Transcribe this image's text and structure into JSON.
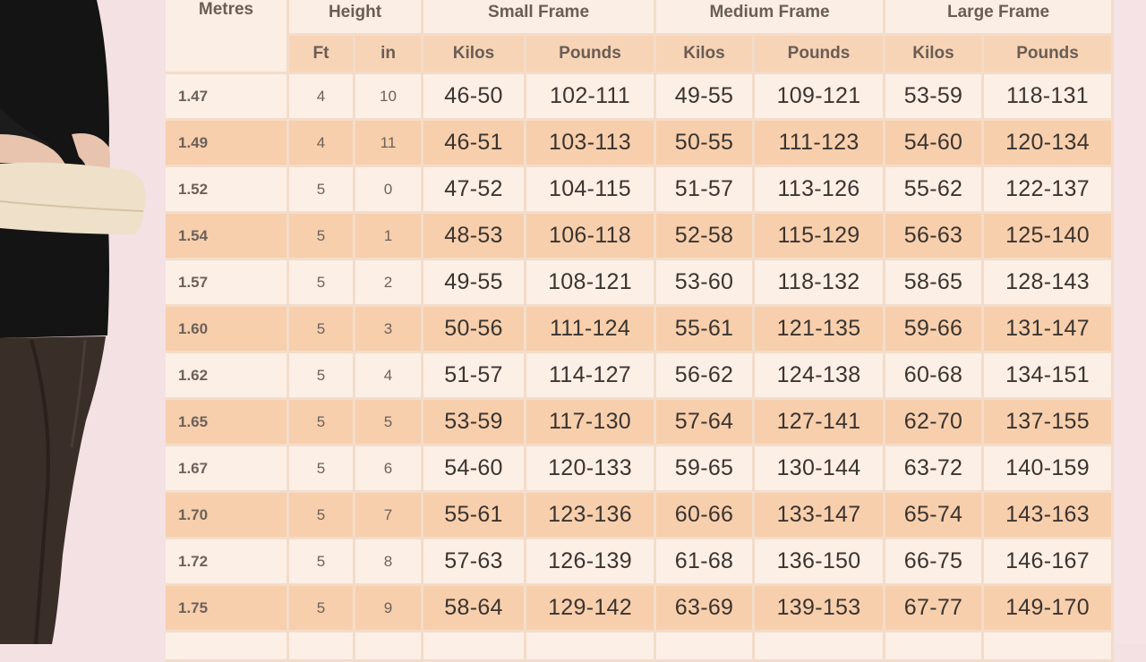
{
  "table": {
    "header": {
      "metres": "Metres",
      "height": "Height",
      "small_frame": "Small Frame",
      "medium_frame": "Medium Frame",
      "large_frame": "Large Frame",
      "ft": "Ft",
      "in": "in",
      "kilos": "Kilos",
      "pounds": "Pounds"
    },
    "rows": [
      {
        "metres": "1.47",
        "ft": "4",
        "in": "10",
        "small_kg": "46-50",
        "small_lb": "102-111",
        "medium_kg": "49-55",
        "medium_lb": "109-121",
        "large_kg": "53-59",
        "large_lb": "118-131"
      },
      {
        "metres": "1.49",
        "ft": "4",
        "in": "11",
        "small_kg": "46-51",
        "small_lb": "103-113",
        "medium_kg": "50-55",
        "medium_lb": "111-123",
        "large_kg": "54-60",
        "large_lb": "120-134"
      },
      {
        "metres": "1.52",
        "ft": "5",
        "in": "0",
        "small_kg": "47-52",
        "small_lb": "104-115",
        "medium_kg": "51-57",
        "medium_lb": "113-126",
        "large_kg": "55-62",
        "large_lb": "122-137"
      },
      {
        "metres": "1.54",
        "ft": "5",
        "in": "1",
        "small_kg": "48-53",
        "small_lb": "106-118",
        "medium_kg": "52-58",
        "medium_lb": "115-129",
        "large_kg": "56-63",
        "large_lb": "125-140"
      },
      {
        "metres": "1.57",
        "ft": "5",
        "in": "2",
        "small_kg": "49-55",
        "small_lb": "108-121",
        "medium_kg": "53-60",
        "medium_lb": "118-132",
        "large_kg": "58-65",
        "large_lb": "128-143"
      },
      {
        "metres": "1.60",
        "ft": "5",
        "in": "3",
        "small_kg": "50-56",
        "small_lb": "111-124",
        "medium_kg": "55-61",
        "medium_lb": "121-135",
        "large_kg": "59-66",
        "large_lb": "131-147"
      },
      {
        "metres": "1.62",
        "ft": "5",
        "in": "4",
        "small_kg": "51-57",
        "small_lb": "114-127",
        "medium_kg": "56-62",
        "medium_lb": "124-138",
        "large_kg": "60-68",
        "large_lb": "134-151"
      },
      {
        "metres": "1.65",
        "ft": "5",
        "in": "5",
        "small_kg": "53-59",
        "small_lb": "117-130",
        "medium_kg": "57-64",
        "medium_lb": "127-141",
        "large_kg": "62-70",
        "large_lb": "137-155"
      },
      {
        "metres": "1.67",
        "ft": "5",
        "in": "6",
        "small_kg": "54-60",
        "small_lb": "120-133",
        "medium_kg": "59-65",
        "medium_lb": "130-144",
        "large_kg": "63-72",
        "large_lb": "140-159"
      },
      {
        "metres": "1.70",
        "ft": "5",
        "in": "7",
        "small_kg": "55-61",
        "small_lb": "123-136",
        "medium_kg": "60-66",
        "medium_lb": "133-147",
        "large_kg": "65-74",
        "large_lb": "143-163"
      },
      {
        "metres": "1.72",
        "ft": "5",
        "in": "8",
        "small_kg": "57-63",
        "small_lb": "126-139",
        "medium_kg": "61-68",
        "medium_lb": "136-150",
        "large_kg": "66-75",
        "large_lb": "146-167"
      },
      {
        "metres": "1.75",
        "ft": "5",
        "in": "9",
        "small_kg": "58-64",
        "small_lb": "129-142",
        "medium_kg": "63-69",
        "medium_lb": "139-153",
        "large_kg": "67-77",
        "large_lb": "149-170"
      }
    ]
  },
  "colors": {
    "header_light": "#fbeee4",
    "header_sub": "#f7d4b6",
    "row_light": "#fcefe6",
    "row_dark": "#f7cfad",
    "background": "#f3e1e3"
  },
  "photo": {
    "icon": "woman-with-clutch-photo"
  }
}
